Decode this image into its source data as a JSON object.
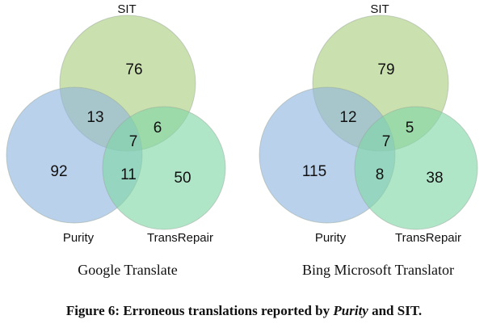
{
  "colors": {
    "sit": "#a9cf7e",
    "purity": "#8fb4df",
    "transrepair": "#7fd6a6",
    "outline": "#9aa89a"
  },
  "diagrams": [
    {
      "title": "Google Translate",
      "sets": {
        "top": "SIT",
        "left": "Purity",
        "right": "TransRepair"
      },
      "regions": {
        "top_only": "76",
        "left_only": "92",
        "right_only": "50",
        "top_left": "13",
        "top_right": "6",
        "left_right": "11",
        "all": "7"
      }
    },
    {
      "title": "Bing Microsoft Translator",
      "sets": {
        "top": "SIT",
        "left": "Purity",
        "right": "TransRepair"
      },
      "regions": {
        "top_only": "79",
        "left_only": "115",
        "right_only": "38",
        "top_left": "12",
        "top_right": "5",
        "left_right": "8",
        "all": "7"
      }
    }
  ],
  "caption": {
    "prefix": "Figure 6: Erroneous translations reported by ",
    "emphasis": "Purity",
    "suffix": " and SIT."
  }
}
